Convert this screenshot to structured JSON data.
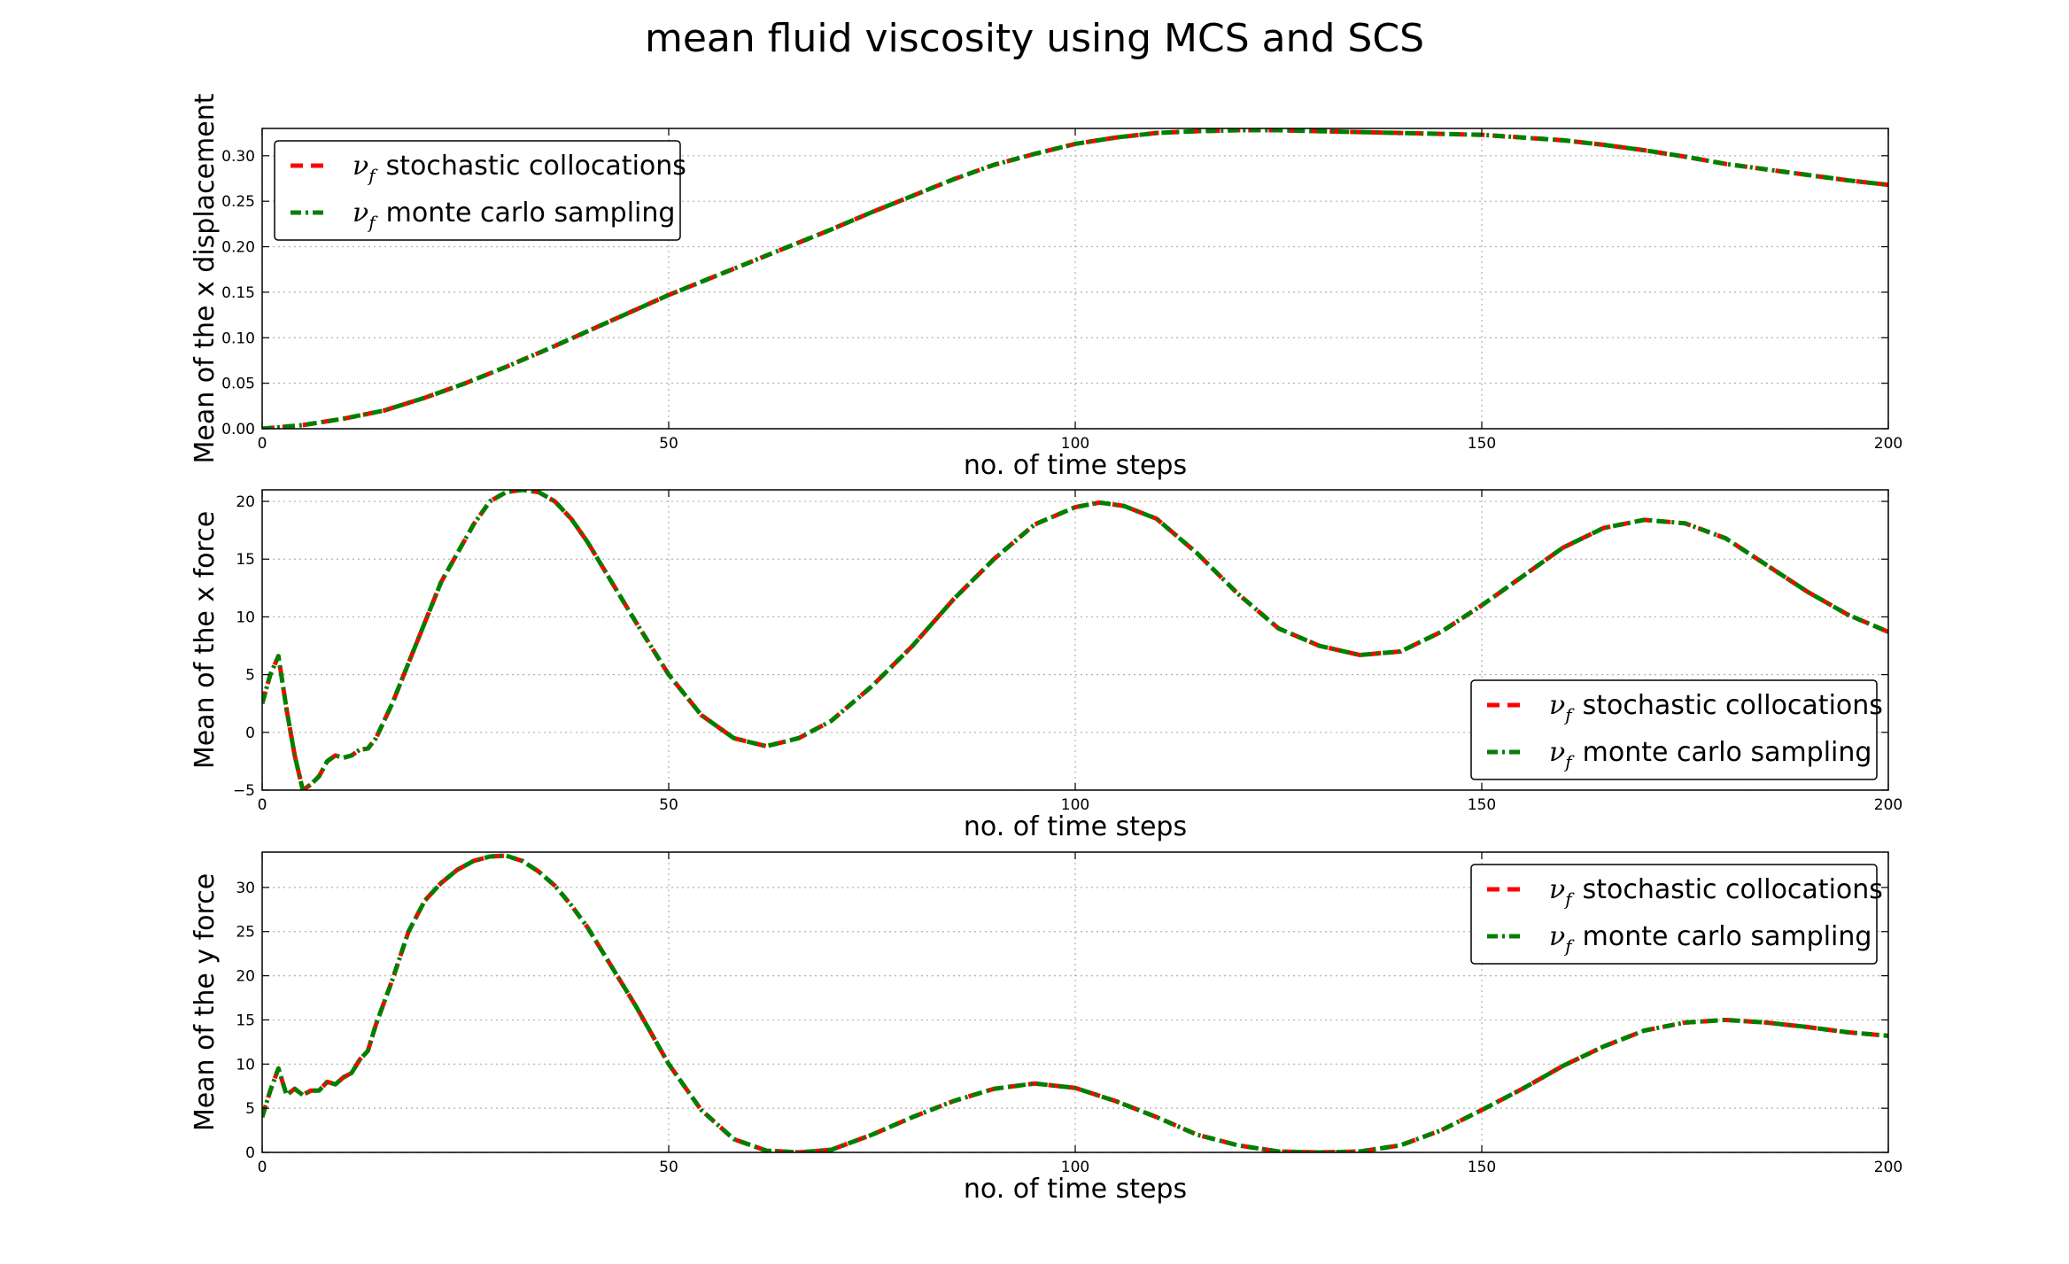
{
  "figure": {
    "title": "mean fluid viscosity using MCS and SCS"
  },
  "colors": {
    "stochastic_collocations": "#ff0000",
    "monte_carlo_sampling": "#008000",
    "grid": "#b0b0b0",
    "frame": "#000000"
  },
  "chart_data": [
    {
      "type": "line",
      "title": "",
      "xlabel": "no. of time steps",
      "ylabel": "Mean of the x displacement",
      "xlim": [
        0,
        200
      ],
      "ylim": [
        0,
        0.33
      ],
      "xticks": [
        0,
        50,
        100,
        150,
        200
      ],
      "yticks": [
        0,
        0.05,
        0.1,
        0.15,
        0.2,
        0.25,
        0.3
      ],
      "xtick_labels": [
        "0",
        "50",
        "100",
        "150",
        "200"
      ],
      "ytick_labels": [
        "0.00",
        "0.05",
        "0.10",
        "0.15",
        "0.20",
        "0.25",
        "0.30"
      ],
      "grid": true,
      "legend_placement": "upper left",
      "legend": [
        {
          "symbol": "ν",
          "sub": "f",
          "label": "stochastic collocations",
          "style": "dashed",
          "color_key": "stochastic_collocations"
        },
        {
          "symbol": "ν",
          "sub": "f",
          "label": "monte carlo sampling",
          "style": "dashdot",
          "color_key": "monte_carlo_sampling"
        }
      ],
      "x": [
        0,
        5,
        10,
        15,
        20,
        25,
        30,
        35,
        40,
        45,
        50,
        55,
        60,
        65,
        70,
        75,
        80,
        85,
        90,
        95,
        100,
        105,
        110,
        115,
        120,
        125,
        130,
        135,
        140,
        145,
        150,
        155,
        160,
        165,
        170,
        175,
        180,
        185,
        190,
        195,
        200
      ],
      "series": [
        {
          "name": "stochastic collocations",
          "values": [
            0.0,
            0.004,
            0.011,
            0.02,
            0.034,
            0.05,
            0.068,
            0.087,
            0.107,
            0.127,
            0.147,
            0.165,
            0.183,
            0.201,
            0.219,
            0.238,
            0.256,
            0.274,
            0.29,
            0.302,
            0.313,
            0.32,
            0.325,
            0.327,
            0.328,
            0.328,
            0.327,
            0.326,
            0.325,
            0.324,
            0.323,
            0.32,
            0.317,
            0.312,
            0.306,
            0.299,
            0.291,
            0.285,
            0.279,
            0.273,
            0.268
          ]
        },
        {
          "name": "monte carlo sampling",
          "values": [
            0.0,
            0.004,
            0.011,
            0.02,
            0.034,
            0.05,
            0.068,
            0.087,
            0.107,
            0.127,
            0.147,
            0.165,
            0.183,
            0.201,
            0.219,
            0.238,
            0.256,
            0.274,
            0.29,
            0.302,
            0.313,
            0.32,
            0.325,
            0.327,
            0.328,
            0.328,
            0.327,
            0.326,
            0.325,
            0.324,
            0.323,
            0.32,
            0.317,
            0.312,
            0.306,
            0.299,
            0.291,
            0.285,
            0.279,
            0.273,
            0.268
          ]
        }
      ]
    },
    {
      "type": "line",
      "title": "",
      "xlabel": "no. of time steps",
      "ylabel": "Mean of the x force",
      "xlim": [
        0,
        200
      ],
      "ylim": [
        -5,
        21
      ],
      "xticks": [
        0,
        50,
        100,
        150,
        200
      ],
      "yticks": [
        -5,
        0,
        5,
        10,
        15,
        20
      ],
      "xtick_labels": [
        "0",
        "50",
        "100",
        "150",
        "200"
      ],
      "ytick_labels": [
        "−5",
        "0",
        "5",
        "10",
        "15",
        "20"
      ],
      "grid": true,
      "legend_placement": "lower right",
      "legend": [
        {
          "symbol": "ν",
          "sub": "f",
          "label": "stochastic collocations",
          "style": "dashed",
          "color_key": "stochastic_collocations"
        },
        {
          "symbol": "ν",
          "sub": "f",
          "label": "monte carlo sampling",
          "style": "dashdot",
          "color_key": "monte_carlo_sampling"
        }
      ],
      "x": [
        0,
        1,
        2,
        3,
        4,
        5,
        6,
        7,
        8,
        9,
        10,
        11,
        12,
        13,
        14,
        16,
        18,
        20,
        22,
        24,
        26,
        28,
        30,
        32,
        34,
        36,
        38,
        40,
        43,
        46,
        50,
        54,
        58,
        62,
        66,
        70,
        75,
        80,
        85,
        90,
        95,
        100,
        103,
        106,
        110,
        115,
        120,
        125,
        130,
        135,
        140,
        145,
        150,
        155,
        160,
        165,
        170,
        175,
        180,
        185,
        190,
        195,
        200
      ],
      "series": [
        {
          "name": "stochastic collocations",
          "values": [
            2.5,
            5.0,
            6.6,
            2.0,
            -2.0,
            -5.0,
            -4.5,
            -3.8,
            -2.5,
            -2.0,
            -2.2,
            -2.0,
            -1.5,
            -1.4,
            -0.5,
            2.5,
            6.0,
            9.5,
            13.0,
            15.5,
            18.0,
            20.0,
            20.8,
            21.0,
            20.8,
            20.0,
            18.5,
            16.5,
            13.0,
            9.5,
            5.0,
            1.5,
            -0.5,
            -1.2,
            -0.5,
            1.0,
            4.0,
            7.5,
            11.5,
            15.0,
            18.0,
            19.5,
            19.9,
            19.6,
            18.5,
            15.5,
            12.0,
            9.0,
            7.5,
            6.7,
            7.0,
            8.7,
            11.0,
            13.5,
            16.0,
            17.7,
            18.4,
            18.1,
            16.8,
            14.5,
            12.2,
            10.2,
            8.7
          ]
        },
        {
          "name": "monte carlo sampling",
          "values": [
            2.5,
            5.0,
            6.6,
            2.0,
            -2.0,
            -5.0,
            -4.5,
            -3.8,
            -2.5,
            -2.0,
            -2.2,
            -2.0,
            -1.5,
            -1.4,
            -0.5,
            2.5,
            6.0,
            9.5,
            13.0,
            15.5,
            18.0,
            20.0,
            20.8,
            21.0,
            20.8,
            20.0,
            18.5,
            16.5,
            13.0,
            9.5,
            5.0,
            1.5,
            -0.5,
            -1.2,
            -0.5,
            1.0,
            4.0,
            7.5,
            11.5,
            15.0,
            18.0,
            19.5,
            19.9,
            19.6,
            18.5,
            15.5,
            12.0,
            9.0,
            7.5,
            6.7,
            7.0,
            8.7,
            11.0,
            13.5,
            16.0,
            17.7,
            18.4,
            18.1,
            16.8,
            14.5,
            12.2,
            10.2,
            8.7
          ]
        }
      ]
    },
    {
      "type": "line",
      "title": "",
      "xlabel": "no. of time steps",
      "ylabel": "Mean of the y force",
      "xlim": [
        0,
        200
      ],
      "ylim": [
        0,
        34
      ],
      "xticks": [
        0,
        50,
        100,
        150,
        200
      ],
      "yticks": [
        0,
        5,
        10,
        15,
        20,
        25,
        30
      ],
      "xtick_labels": [
        "0",
        "50",
        "100",
        "150",
        "200"
      ],
      "ytick_labels": [
        "0",
        "5",
        "10",
        "15",
        "20",
        "25",
        "30"
      ],
      "grid": true,
      "legend_placement": "upper right",
      "legend": [
        {
          "symbol": "ν",
          "sub": "f",
          "label": "stochastic collocations",
          "style": "dashed",
          "color_key": "stochastic_collocations"
        },
        {
          "symbol": "ν",
          "sub": "f",
          "label": "monte carlo sampling",
          "style": "dashdot",
          "color_key": "monte_carlo_sampling"
        }
      ],
      "x": [
        0,
        1,
        2,
        3,
        4,
        5,
        6,
        7,
        8,
        9,
        10,
        11,
        12,
        13,
        14,
        16,
        18,
        20,
        22,
        24,
        26,
        28,
        30,
        32,
        34,
        36,
        38,
        40,
        43,
        46,
        50,
        54,
        58,
        62,
        66,
        70,
        75,
        80,
        85,
        90,
        95,
        100,
        105,
        110,
        115,
        120,
        125,
        130,
        135,
        140,
        145,
        150,
        155,
        160,
        165,
        170,
        175,
        180,
        185,
        190,
        195,
        200
      ],
      "series": [
        {
          "name": "stochastic collocations",
          "values": [
            4.0,
            7.0,
            9.5,
            6.5,
            7.2,
            6.5,
            7.0,
            7.0,
            8.0,
            7.7,
            8.5,
            9.0,
            10.5,
            11.5,
            14.5,
            19.5,
            25.0,
            28.5,
            30.5,
            32.0,
            33.0,
            33.5,
            33.6,
            33.0,
            31.8,
            30.2,
            28.0,
            25.5,
            21.0,
            16.5,
            10.0,
            4.8,
            1.5,
            0.2,
            0.0,
            0.3,
            2.0,
            4.0,
            5.8,
            7.2,
            7.8,
            7.3,
            5.8,
            4.0,
            2.0,
            0.8,
            0.1,
            0.0,
            0.1,
            0.8,
            2.5,
            4.8,
            7.2,
            9.8,
            12.0,
            13.8,
            14.7,
            15.0,
            14.7,
            14.2,
            13.6,
            13.2
          ]
        },
        {
          "name": "monte carlo sampling",
          "values": [
            4.0,
            7.0,
            9.5,
            6.5,
            7.2,
            6.5,
            7.0,
            7.0,
            8.0,
            7.7,
            8.5,
            9.0,
            10.5,
            11.5,
            14.5,
            19.5,
            25.0,
            28.5,
            30.5,
            32.0,
            33.0,
            33.5,
            33.6,
            33.0,
            31.8,
            30.2,
            28.0,
            25.5,
            21.0,
            16.5,
            10.0,
            4.8,
            1.5,
            0.2,
            0.0,
            0.3,
            2.0,
            4.0,
            5.8,
            7.2,
            7.8,
            7.3,
            5.8,
            4.0,
            2.0,
            0.8,
            0.1,
            0.0,
            0.1,
            0.8,
            2.5,
            4.8,
            7.2,
            9.8,
            12.0,
            13.8,
            14.7,
            15.0,
            14.7,
            14.2,
            13.6,
            13.2
          ]
        }
      ]
    }
  ]
}
